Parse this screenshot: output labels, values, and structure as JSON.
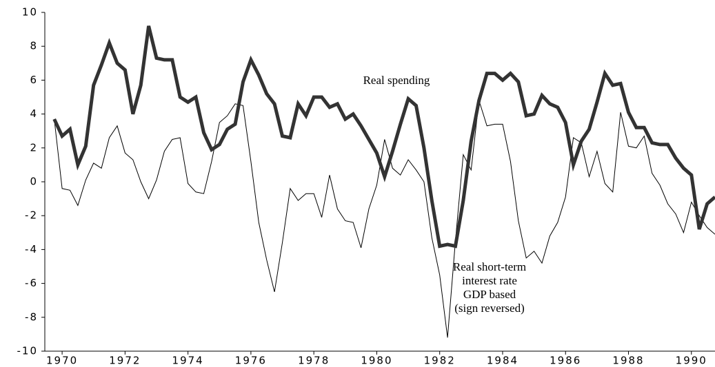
{
  "chart_data": {
    "type": "line",
    "x": [
      1969.75,
      1970,
      1970.25,
      1970.5,
      1970.75,
      1971,
      1971.25,
      1971.5,
      1971.75,
      1972,
      1972.25,
      1972.5,
      1972.75,
      1973,
      1973.25,
      1973.5,
      1973.75,
      1974,
      1974.25,
      1974.5,
      1974.75,
      1975,
      1975.25,
      1975.5,
      1975.75,
      1976,
      1976.25,
      1976.5,
      1976.75,
      1977,
      1977.25,
      1977.5,
      1977.75,
      1978,
      1978.25,
      1978.5,
      1978.75,
      1979,
      1979.25,
      1979.5,
      1979.75,
      1980,
      1980.25,
      1980.5,
      1980.75,
      1981,
      1981.25,
      1981.5,
      1981.75,
      1982,
      1982.25,
      1982.5,
      1982.75,
      1983,
      1983.25,
      1983.5,
      1983.75,
      1984,
      1984.25,
      1984.5,
      1984.75,
      1985,
      1985.25,
      1985.5,
      1985.75,
      1986,
      1986.25,
      1986.5,
      1986.75,
      1987,
      1987.25,
      1987.5,
      1987.75,
      1988,
      1988.25,
      1988.5,
      1988.75,
      1989,
      1989.25,
      1989.5,
      1989.75,
      1990,
      1990.25,
      1990.5,
      1990.75
    ],
    "series": [
      {
        "name": "Real spending",
        "color": "#333333",
        "width": 5,
        "values": [
          3.7,
          2.7,
          3.1,
          1.0,
          2.1,
          5.7,
          6.9,
          8.2,
          7.0,
          6.6,
          4.0,
          5.7,
          9.2,
          7.3,
          7.2,
          7.2,
          5.0,
          4.7,
          5.0,
          2.9,
          1.9,
          2.2,
          3.1,
          3.4,
          5.9,
          7.2,
          6.3,
          5.2,
          4.6,
          2.7,
          2.6,
          4.6,
          3.9,
          5.0,
          5.0,
          4.4,
          4.6,
          3.7,
          4.0,
          3.3,
          2.5,
          1.7,
          0.3,
          1.8,
          3.4,
          4.9,
          4.5,
          2.0,
          -1.1,
          -3.8,
          -3.7,
          -3.8,
          -1.1,
          2.4,
          4.8,
          6.4,
          6.4,
          6.0,
          6.4,
          5.9,
          3.9,
          4.0,
          5.1,
          4.6,
          4.4,
          3.5,
          1.0,
          2.4,
          3.1,
          4.7,
          6.4,
          5.7,
          5.8,
          4.1,
          3.2,
          3.2,
          2.3,
          2.2,
          2.2,
          1.4,
          0.8,
          0.4,
          -2.8,
          -1.3,
          -0.9
        ]
      },
      {
        "name": "Real short-term interest rate GDP based (sign reversed)",
        "color": "#000000",
        "width": 1,
        "values": [
          3.7,
          -0.4,
          -0.5,
          -1.4,
          0.1,
          1.1,
          0.8,
          2.6,
          3.3,
          1.7,
          1.3,
          0.0,
          -1.0,
          0.1,
          1.8,
          2.5,
          2.6,
          -0.1,
          -0.6,
          -0.7,
          1.2,
          3.5,
          3.9,
          4.6,
          4.5,
          1.2,
          -2.4,
          -4.6,
          -6.5,
          -3.6,
          -0.4,
          -1.1,
          -0.7,
          -0.7,
          -2.1,
          0.4,
          -1.6,
          -2.3,
          -2.4,
          -3.9,
          -1.6,
          -0.2,
          2.5,
          0.8,
          0.4,
          1.3,
          0.7,
          0.0,
          -3.3,
          -5.5,
          -9.2,
          -3.5,
          1.6,
          0.7,
          4.8,
          3.3,
          3.4,
          3.4,
          1.2,
          -2.3,
          -4.5,
          -4.1,
          -4.8,
          -3.2,
          -2.4,
          -0.9,
          2.6,
          2.3,
          0.3,
          1.8,
          -0.1,
          -0.6,
          4.1,
          2.1,
          2.0,
          2.7,
          0.5,
          -0.2,
          -1.3,
          -1.9,
          -3.0,
          -1.2,
          -2.0,
          -2.7,
          -3.1
        ]
      }
    ],
    "annotations": [
      {
        "lines": [
          "Real spending"
        ]
      },
      {
        "lines": [
          "Real short-term",
          "interest rate",
          "GDP based",
          "(sign reversed)"
        ]
      }
    ],
    "xlim": [
      1969.45,
      1990.75
    ],
    "xticks": [
      1970,
      1972,
      1974,
      1976,
      1978,
      1980,
      1982,
      1984,
      1986,
      1988,
      1990
    ],
    "ylim": [
      -10,
      10
    ],
    "yticks": [
      -10,
      -8,
      -6,
      -4,
      -2,
      0,
      2,
      4,
      6,
      8,
      10
    ]
  }
}
